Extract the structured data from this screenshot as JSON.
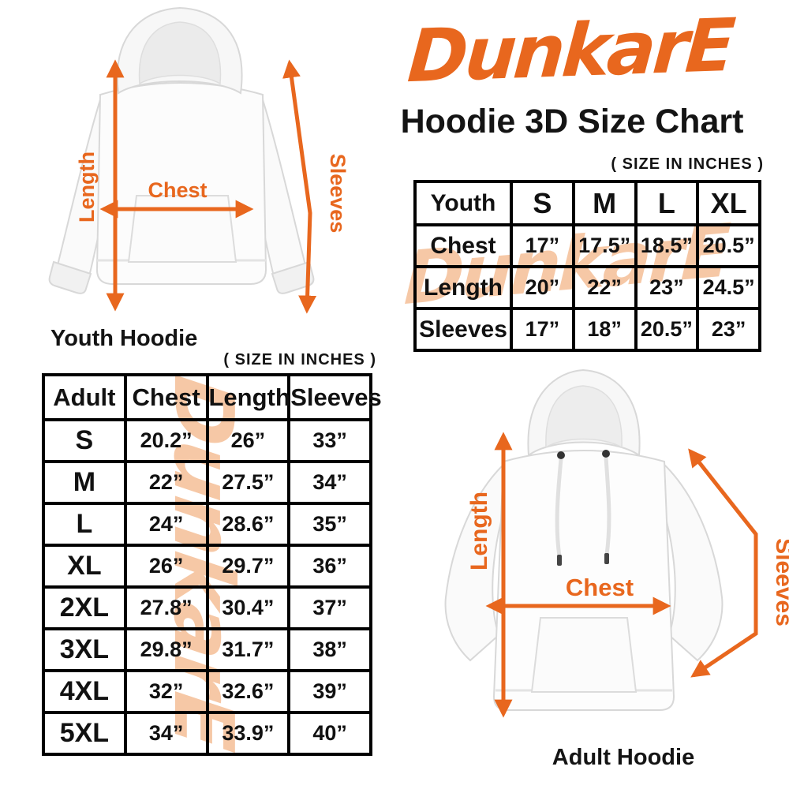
{
  "brand": {
    "logo_text": "DunkarE",
    "logo_color": "#E8671E",
    "watermark_text": "DunkarE",
    "watermark_color": "#F6C8A6"
  },
  "title": "Hoodie 3D Size Chart",
  "youth": {
    "size_note": "( SIZE IN INCHES )",
    "caption": "Youth Hoodie",
    "labels": {
      "length": "Length",
      "chest": "Chest",
      "sleeves": "Sleeves"
    },
    "table": {
      "header": [
        "Youth",
        "S",
        "M",
        "L",
        "XL"
      ],
      "rows": [
        {
          "label": "Chest",
          "values": [
            "17”",
            "17.5”",
            "18.5”",
            "20.5”"
          ]
        },
        {
          "label": "Length",
          "values": [
            "20”",
            "22”",
            "23”",
            "24.5”"
          ]
        },
        {
          "label": "Sleeves",
          "values": [
            "17”",
            "18”",
            "20.5”",
            "23”"
          ]
        }
      ]
    }
  },
  "adult": {
    "size_note": "( SIZE IN INCHES )",
    "caption": "Adult Hoodie",
    "labels": {
      "length": "Length",
      "chest": "Chest",
      "sleeves": "Sleeves"
    },
    "table": {
      "header": [
        "Adult",
        "Chest",
        "Length",
        "Sleeves"
      ],
      "rows": [
        {
          "label": "S",
          "values": [
            "20.2”",
            "26”",
            "33”"
          ]
        },
        {
          "label": "M",
          "values": [
            "22”",
            "27.5”",
            "34”"
          ]
        },
        {
          "label": "L",
          "values": [
            "24”",
            "28.6”",
            "35”"
          ]
        },
        {
          "label": "XL",
          "values": [
            "26”",
            "29.7”",
            "36”"
          ]
        },
        {
          "label": "2XL",
          "values": [
            "27.8”",
            "30.4”",
            "37”"
          ]
        },
        {
          "label": "3XL",
          "values": [
            "29.8”",
            "31.7”",
            "38”"
          ]
        },
        {
          "label": "4XL",
          "values": [
            "32”",
            "32.6”",
            "39”"
          ]
        },
        {
          "label": "5XL",
          "values": [
            "34”",
            "33.9”",
            "40”"
          ]
        }
      ]
    }
  }
}
